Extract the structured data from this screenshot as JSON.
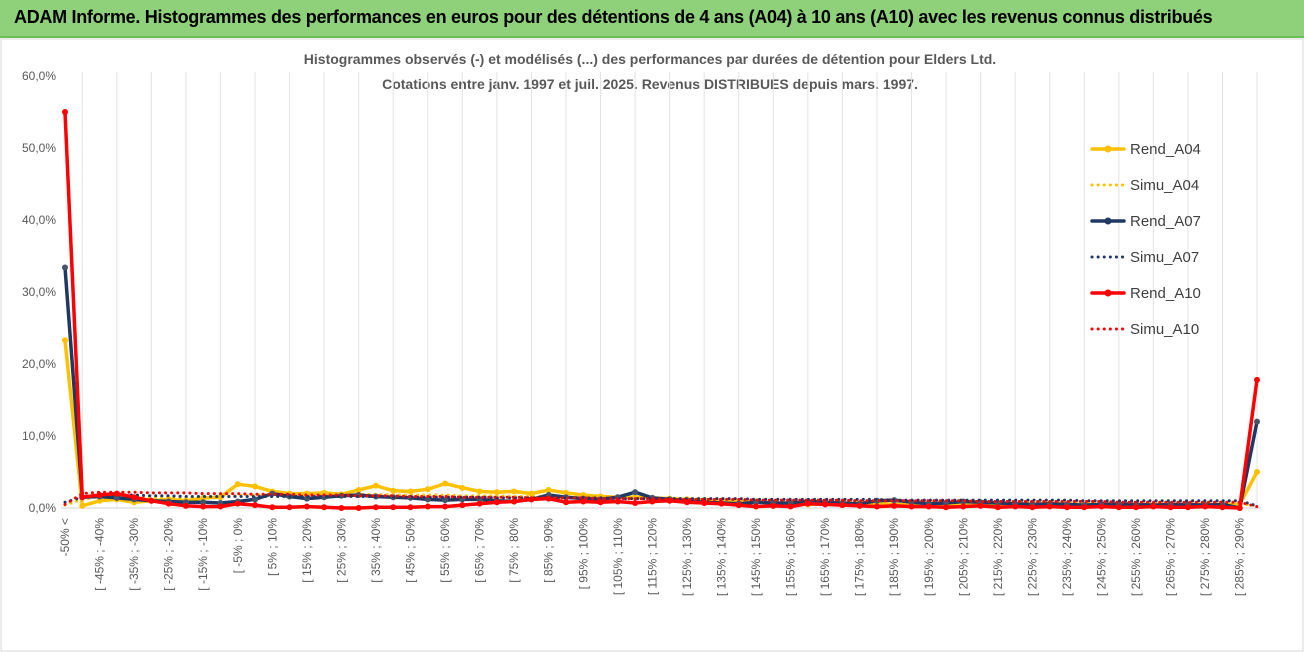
{
  "header": {
    "title": "ADAM Informe. Histogrammes des performances en euros pour des détentions de 4 ans (A04) à 10 ans (A10) avec les revenus connus distribués"
  },
  "chart_data": {
    "type": "line",
    "title": "Histogrammes observés (-) et modélisés (...) des performances par durées de détention pour Elders Ltd.",
    "subtitle": "Cotations entre janv. 1997 et juil. 2025. Revenus DISTRIBUES depuis mars. 1997.",
    "categories": [
      "-50% <",
      null,
      "[ -45% ; -40%",
      null,
      "[ -35% ; -30%",
      null,
      "[ -25% ; -20%",
      null,
      "[ -15% ; -10%",
      null,
      "[ -5% ; 0%",
      null,
      "[ 5% ; 10%",
      null,
      "[ 15% ; 20%",
      null,
      "[ 25% ; 30%",
      null,
      "[ 35% ; 40%",
      null,
      "[ 45% ; 50%",
      null,
      "[ 55% ; 60%",
      null,
      "[ 65% ; 70%",
      null,
      "[ 75% ; 80%",
      null,
      "[ 85% ; 90%",
      null,
      "[ 95% ; 100%",
      null,
      "[ 105% ; 110%",
      null,
      "[ 115% ; 120%",
      null,
      "[ 125% ; 130%",
      null,
      "[ 135% ; 140%",
      null,
      "[ 145% ; 150%",
      null,
      "[ 155% ; 160%",
      null,
      "[ 165% ; 170%",
      null,
      "[ 175% ; 180%",
      null,
      "[ 185% ; 190%",
      null,
      "[ 195% ; 200%",
      null,
      "[ 205% ; 210%",
      null,
      "[ 215% ; 220%",
      null,
      "[ 225% ; 230%",
      null,
      "[ 235% ; 240%",
      null,
      "[ 245% ; 250%",
      null,
      "[ 255% ; 260%",
      null,
      "[ 265% ; 270%",
      null,
      "[ 275% ; 280%",
      null,
      "[ 285% ; 290%",
      null
    ],
    "series": [
      {
        "name": "Rend_A04",
        "color": "#ffc000",
        "style": "solid",
        "values": [
          23.3,
          0.3,
          1.0,
          1.2,
          0.8,
          1.0,
          1.2,
          1.0,
          1.4,
          1.5,
          3.3,
          3.0,
          2.3,
          2.0,
          2.0,
          2.1,
          1.9,
          2.5,
          3.1,
          2.4,
          2.3,
          2.6,
          3.4,
          2.8,
          2.3,
          2.2,
          2.3,
          2.0,
          2.5,
          2.1,
          1.8,
          1.6,
          1.5,
          1.5,
          1.4,
          1.3,
          1.2,
          1.1,
          1.0,
          0.9,
          0.9,
          0.7,
          0.6,
          0.5,
          0.6,
          0.7,
          0.5,
          0.6,
          0.5,
          0.4,
          0.5,
          0.5,
          0.4,
          0.5,
          0.4,
          0.5,
          0.4,
          0.4,
          0.5,
          0.4,
          0.4,
          0.5,
          0.4,
          0.4,
          0.5,
          0.4,
          0.5,
          0.4,
          0.5,
          5.0
        ]
      },
      {
        "name": "Simu_A04",
        "color": "#ffc000",
        "style": "dotted",
        "values": [
          0.4,
          1.2,
          1.6,
          1.6,
          1.6,
          1.5,
          1.5,
          1.5,
          1.5,
          1.6,
          1.7,
          1.8,
          1.8,
          1.8,
          1.9,
          1.9,
          1.9,
          1.9,
          1.9,
          1.8,
          1.8,
          1.8,
          1.8,
          1.7,
          1.7,
          1.7,
          1.6,
          1.6,
          1.6,
          1.5,
          1.5,
          1.5,
          1.4,
          1.4,
          1.4,
          1.3,
          1.3,
          1.3,
          1.2,
          1.2,
          1.2,
          1.1,
          1.1,
          1.1,
          1.0,
          1.0,
          1.0,
          1.0,
          0.9,
          0.9,
          0.9,
          0.9,
          0.9,
          0.8,
          0.8,
          0.8,
          0.8,
          0.8,
          0.7,
          0.7,
          0.7,
          0.7,
          0.7,
          0.7,
          0.6,
          0.6,
          0.6,
          0.6,
          0.6,
          0.3
        ]
      },
      {
        "name": "Rend_A07",
        "color": "#1f3864",
        "style": "solid",
        "values": [
          33.4,
          1.5,
          1.6,
          1.4,
          1.2,
          1.0,
          0.9,
          0.8,
          0.8,
          0.7,
          0.9,
          1.2,
          2.0,
          1.6,
          1.3,
          1.5,
          1.7,
          1.8,
          1.6,
          1.5,
          1.4,
          1.2,
          1.1,
          1.2,
          1.2,
          1.0,
          0.9,
          1.2,
          1.8,
          1.5,
          1.3,
          1.2,
          1.5,
          2.2,
          1.4,
          1.2,
          1.0,
          0.8,
          0.7,
          0.6,
          0.8,
          0.7,
          0.7,
          0.9,
          0.8,
          0.7,
          0.6,
          1.0,
          1.1,
          0.8,
          0.6,
          0.7,
          0.9,
          0.8,
          0.7,
          0.6,
          0.5,
          0.6,
          0.5,
          0.4,
          0.5,
          0.6,
          0.5,
          0.4,
          0.5,
          0.5,
          0.4,
          0.5,
          0.0,
          12.0
        ]
      },
      {
        "name": "Simu_A07",
        "color": "#1f3864",
        "style": "dotted",
        "values": [
          0.8,
          1.5,
          1.7,
          1.8,
          1.8,
          1.7,
          1.7,
          1.6,
          1.6,
          1.6,
          1.6,
          1.6,
          1.6,
          1.6,
          1.6,
          1.6,
          1.6,
          1.6,
          1.6,
          1.5,
          1.5,
          1.5,
          1.5,
          1.5,
          1.5,
          1.4,
          1.4,
          1.4,
          1.4,
          1.4,
          1.4,
          1.4,
          1.3,
          1.3,
          1.3,
          1.3,
          1.3,
          1.3,
          1.3,
          1.3,
          1.2,
          1.2,
          1.2,
          1.2,
          1.2,
          1.2,
          1.2,
          1.2,
          1.1,
          1.1,
          1.1,
          1.1,
          1.1,
          1.1,
          1.1,
          1.1,
          1.1,
          1.1,
          1.1,
          1.0,
          1.0,
          1.0,
          1.0,
          1.0,
          1.0,
          1.0,
          1.0,
          1.0,
          1.0,
          0.3
        ]
      },
      {
        "name": "Rend_A10",
        "color": "#ff0000",
        "style": "solid",
        "values": [
          55.0,
          1.5,
          1.8,
          2.0,
          1.5,
          1.0,
          0.6,
          0.3,
          0.2,
          0.2,
          0.6,
          0.4,
          0.1,
          0.1,
          0.2,
          0.1,
          0.0,
          0.0,
          0.1,
          0.1,
          0.1,
          0.2,
          0.2,
          0.4,
          0.6,
          0.8,
          0.9,
          1.2,
          1.3,
          0.8,
          0.9,
          0.8,
          0.9,
          0.7,
          0.9,
          1.0,
          0.8,
          0.7,
          0.6,
          0.4,
          0.2,
          0.3,
          0.2,
          0.6,
          0.5,
          0.4,
          0.3,
          0.2,
          0.3,
          0.2,
          0.2,
          0.1,
          0.2,
          0.3,
          0.1,
          0.2,
          0.1,
          0.2,
          0.1,
          0.1,
          0.2,
          0.1,
          0.1,
          0.2,
          0.1,
          0.1,
          0.2,
          0.1,
          0.0,
          17.8
        ]
      },
      {
        "name": "Simu_A10",
        "color": "#ff0000",
        "style": "dotted",
        "values": [
          0.5,
          2.0,
          2.2,
          2.2,
          2.2,
          2.1,
          2.1,
          2.1,
          2.0,
          2.0,
          2.0,
          1.9,
          1.9,
          1.9,
          1.8,
          1.8,
          1.8,
          1.7,
          1.7,
          1.7,
          1.6,
          1.6,
          1.6,
          1.5,
          1.5,
          1.5,
          1.5,
          1.4,
          1.4,
          1.4,
          1.4,
          1.3,
          1.3,
          1.3,
          1.3,
          1.2,
          1.2,
          1.2,
          1.2,
          1.2,
          1.1,
          1.1,
          1.1,
          1.1,
          1.1,
          1.1,
          1.0,
          1.0,
          1.0,
          1.0,
          1.0,
          1.0,
          1.0,
          0.9,
          0.9,
          0.9,
          0.9,
          0.9,
          0.9,
          0.9,
          0.9,
          0.8,
          0.8,
          0.8,
          0.8,
          0.8,
          0.8,
          0.8,
          0.8,
          0.2
        ]
      }
    ],
    "ylim": [
      0,
      60
    ],
    "yticks": [
      {
        "value": 0,
        "label": "0,0%"
      },
      {
        "value": 10,
        "label": "10,0%"
      },
      {
        "value": 20,
        "label": "20,0%"
      },
      {
        "value": 30,
        "label": "30,0%"
      },
      {
        "value": 40,
        "label": "40,0%"
      },
      {
        "value": 50,
        "label": "50,0%"
      },
      {
        "value": 60,
        "label": "60,0%"
      }
    ],
    "grid": "x",
    "legend": "right"
  }
}
